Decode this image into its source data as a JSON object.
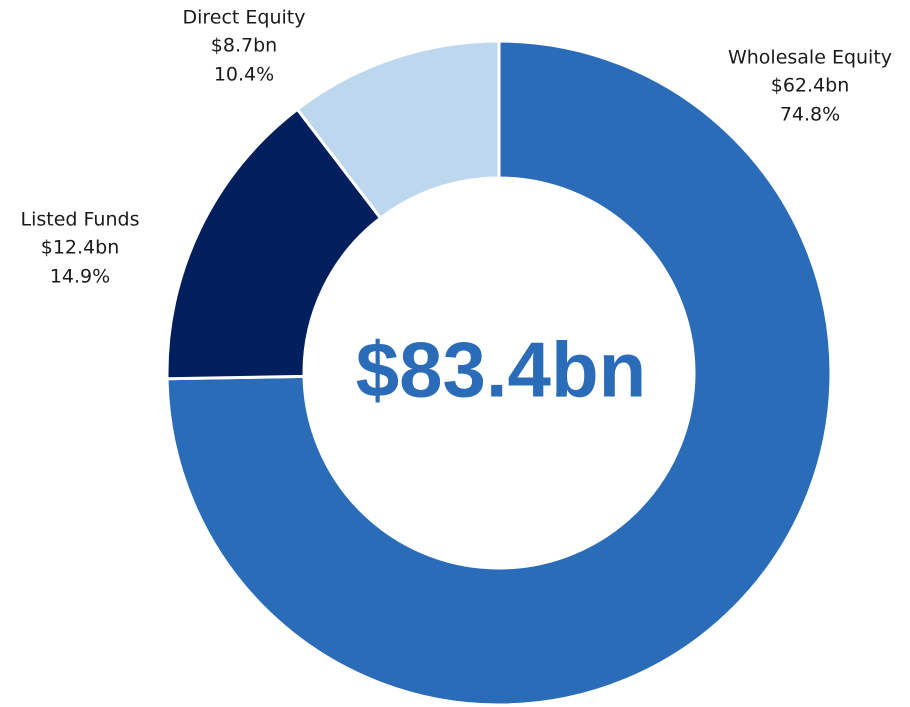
{
  "chart_data": {
    "type": "donut",
    "center_label": "$83.4bn",
    "categories": [
      "Wholesale Equity",
      "Listed Funds",
      "Direct Equity"
    ],
    "values": [
      74.8,
      14.9,
      10.4
    ],
    "value_labels": [
      "74.8%",
      "14.9%",
      "10.4%"
    ],
    "amount_labels": [
      "$62.4bn",
      "$12.4bn",
      "$8.7bn"
    ],
    "colors": [
      "#2b6cb9",
      "#001f5c",
      "#bdd7ee"
    ]
  }
}
